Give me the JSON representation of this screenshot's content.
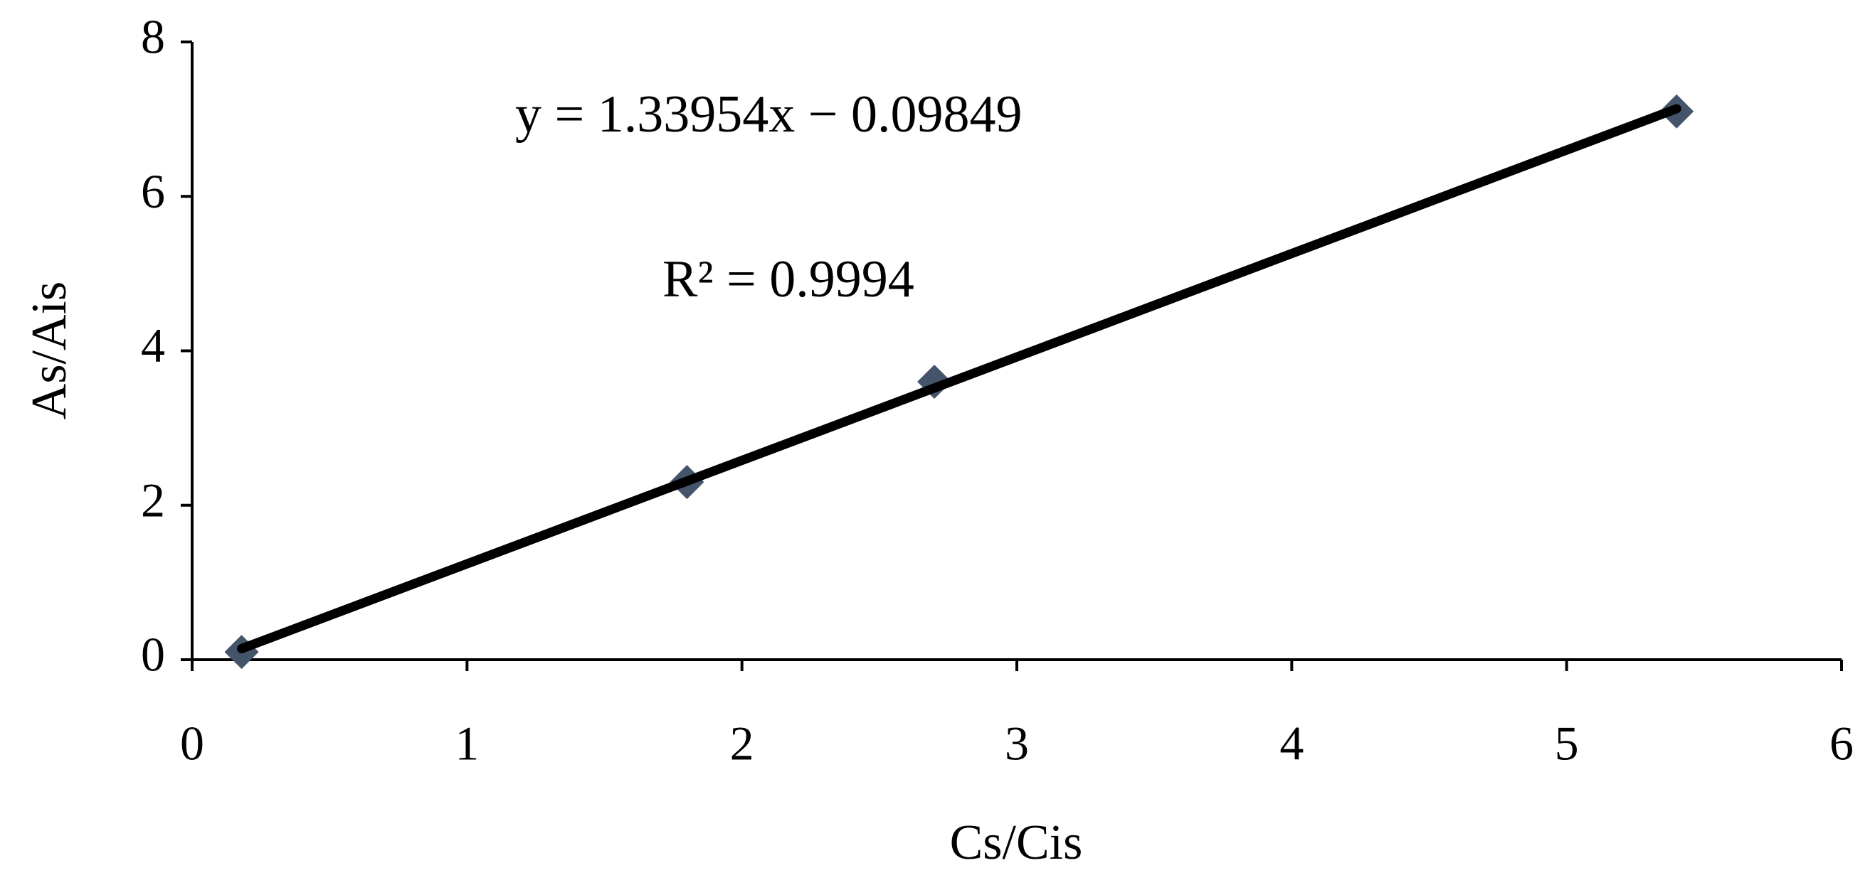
{
  "chart_data": {
    "type": "scatter",
    "x_label": "Cs/Cis",
    "y_label": "As/Ais",
    "series": [
      {
        "name": "As/Ais",
        "color": "#44546a",
        "x": [
          0.18,
          1.8,
          2.7,
          5.4
        ],
        "values": [
          0.1,
          2.3,
          3.6,
          7.1
        ]
      }
    ],
    "trendline": {
      "slope": 1.33954,
      "intercept": -0.09849,
      "color": "#000000"
    },
    "annotations": [
      "y = 1.33954x − 0.09849",
      "R² = 0.9994"
    ],
    "xlim": [
      0,
      6
    ],
    "xticks": [
      0,
      1,
      2,
      3,
      4,
      5,
      6
    ],
    "ylim": [
      0,
      8
    ],
    "yticks": [
      0,
      2,
      4,
      6,
      8
    ],
    "grid": false
  }
}
